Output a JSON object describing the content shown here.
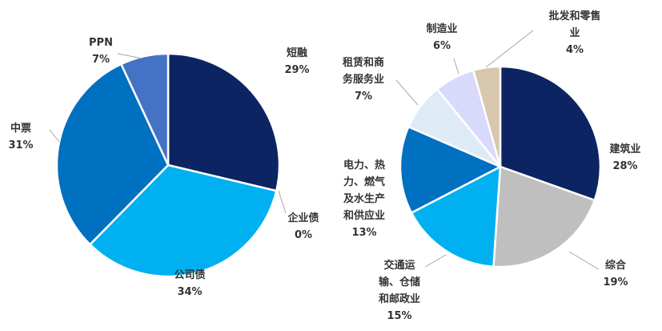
{
  "chart_data": [
    {
      "type": "pie",
      "categories": [
        "短融",
        "企业债",
        "公司债",
        "中票",
        "PPN"
      ],
      "values": [
        29,
        0,
        34,
        31,
        7
      ],
      "value_labels": [
        "29%",
        "0%",
        "34%",
        "31%",
        "7%"
      ],
      "colors": [
        "#0c2461",
        "#2a6fc9",
        "#00b0f0",
        "#0070c0",
        "#4472c4"
      ]
    },
    {
      "type": "pie",
      "categories": [
        "建筑业",
        "综合",
        "交通运输、仓储和邮政业",
        "电力、热力、燃气及水生产和供应业",
        "租赁和商务服务业",
        "制造业",
        "批发和零售业"
      ],
      "label_lines": [
        [
          "建筑业"
        ],
        [
          "综合"
        ],
        [
          "交通运",
          "输、仓储",
          "和邮政业"
        ],
        [
          "电力、热",
          "力、燃气",
          "及水生产",
          "和供应业"
        ],
        [
          "租赁和商",
          "务服务业"
        ],
        [
          "制造业"
        ],
        [
          "批发和零售",
          "业"
        ]
      ],
      "values": [
        28,
        19,
        15,
        13,
        7,
        6,
        4
      ],
      "value_labels": [
        "28%",
        "19%",
        "15%",
        "13%",
        "7%",
        "6%",
        "4%"
      ],
      "colors": [
        "#0c2461",
        "#bfbfbf",
        "#00b0f0",
        "#0070c0",
        "#deebf7",
        "#d9d9fb",
        "#d6c7ae"
      ]
    }
  ]
}
